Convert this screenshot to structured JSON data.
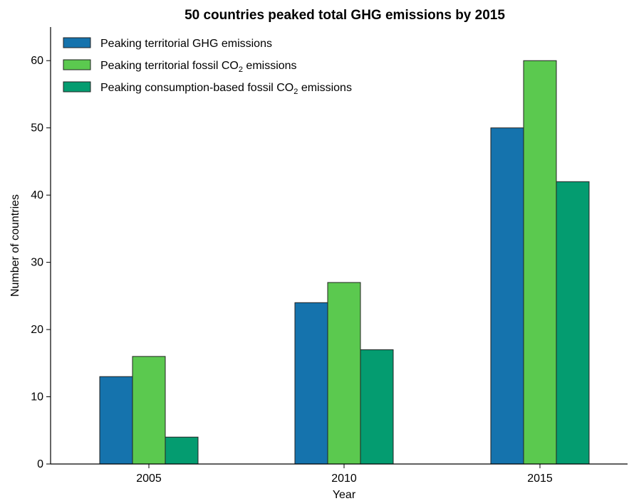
{
  "chart_data": {
    "type": "bar",
    "title": "50 countries peaked total GHG emissions by 2015",
    "xlabel": "Year",
    "ylabel": "Number of countries",
    "categories": [
      "2005",
      "2010",
      "2015"
    ],
    "ylim": [
      0,
      65
    ],
    "yticks": [
      0,
      10,
      20,
      30,
      40,
      50,
      60
    ],
    "grid": false,
    "legend_position": "top-left",
    "series": [
      {
        "name": "Peaking territorial GHG emissions",
        "label_main": "Peaking territorial GHG emissions",
        "label_sub": "",
        "label_tail": "",
        "color": "#1573ad",
        "values": [
          13,
          24,
          50
        ]
      },
      {
        "name": "Peaking territorial fossil CO2 emissions",
        "label_main": "Peaking territorial fossil CO",
        "label_sub": "2",
        "label_tail": " emissions",
        "color": "#5bc94f",
        "values": [
          16,
          27,
          60
        ]
      },
      {
        "name": "Peaking consumption-based fossil CO2 emissions",
        "label_main": "Peaking consumption-based fossil CO",
        "label_sub": "2",
        "label_tail": " emissions",
        "color": "#049c70",
        "values": [
          4,
          17,
          42
        ]
      }
    ]
  }
}
